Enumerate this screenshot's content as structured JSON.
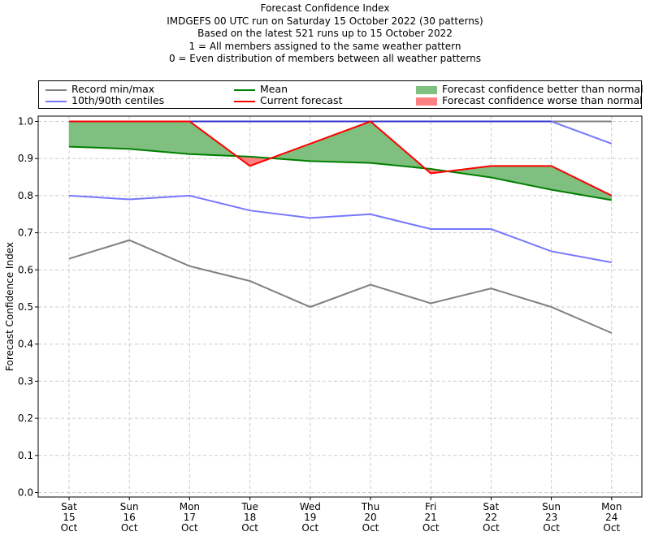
{
  "titles": {
    "line1": "Forecast Confidence Index",
    "line2": "IMDGEFS 00 UTC run on Saturday 15 October 2022 (30 patterns)",
    "line3": "Based on the latest 521 runs up to 15 October 2022",
    "line4": "1 = All members assigned to the same weather pattern",
    "line5": "0 = Even distribution of members between all weather patterns"
  },
  "legend": {
    "record": "Record min/max",
    "centiles": "10th/90th centiles",
    "mean": "Mean",
    "current": "Current forecast",
    "better": "Forecast confidence better than normal",
    "worse": "Forecast confidence worse than normal"
  },
  "colors": {
    "record": "#808080",
    "centiles": "#7777ff",
    "mean": "#008000",
    "current": "#ff0000",
    "better_fill": "#7fbf7f",
    "worse_fill": "#ff8080",
    "max_line": "#3333cc"
  },
  "chart_data": {
    "type": "line",
    "title": "",
    "ylabel": "Forecast Confidence Index",
    "xlabel": "",
    "ylim": [
      0.0,
      1.0
    ],
    "yticks": [
      "0.0",
      "0.1",
      "0.2",
      "0.3",
      "0.4",
      "0.5",
      "0.6",
      "0.7",
      "0.8",
      "0.9",
      "1.0"
    ],
    "categories": [
      [
        "Sat",
        "15",
        "Oct"
      ],
      [
        "Sun",
        "16",
        "Oct"
      ],
      [
        "Mon",
        "17",
        "Oct"
      ],
      [
        "Tue",
        "18",
        "Oct"
      ],
      [
        "Wed",
        "19",
        "Oct"
      ],
      [
        "Thu",
        "20",
        "Oct"
      ],
      [
        "Fri",
        "21",
        "Oct"
      ],
      [
        "Sat",
        "22",
        "Oct"
      ],
      [
        "Sun",
        "23",
        "Oct"
      ],
      [
        "Mon",
        "24",
        "Oct"
      ]
    ],
    "grid": true,
    "legend_position": "top",
    "series": [
      {
        "key": "record_max",
        "values": [
          1.0,
          1.0,
          1.0,
          1.0,
          1.0,
          1.0,
          1.0,
          1.0,
          1.0,
          1.0
        ]
      },
      {
        "key": "record_min",
        "values": [
          0.63,
          0.68,
          0.61,
          0.57,
          0.5,
          0.56,
          0.51,
          0.55,
          0.5,
          0.43
        ]
      },
      {
        "key": "p90",
        "values": [
          1.0,
          1.0,
          1.0,
          1.0,
          1.0,
          1.0,
          1.0,
          1.0,
          1.0,
          0.94
        ]
      },
      {
        "key": "p10",
        "values": [
          0.8,
          0.79,
          0.8,
          0.76,
          0.74,
          0.75,
          0.71,
          0.71,
          0.65,
          0.62
        ]
      },
      {
        "key": "mean",
        "values": [
          0.932,
          0.926,
          0.912,
          0.905,
          0.893,
          0.888,
          0.872,
          0.849,
          0.816,
          0.788
        ]
      },
      {
        "key": "current",
        "values": [
          1.0,
          1.0,
          1.0,
          0.88,
          0.94,
          1.0,
          0.86,
          0.88,
          0.88,
          0.8
        ]
      }
    ]
  }
}
